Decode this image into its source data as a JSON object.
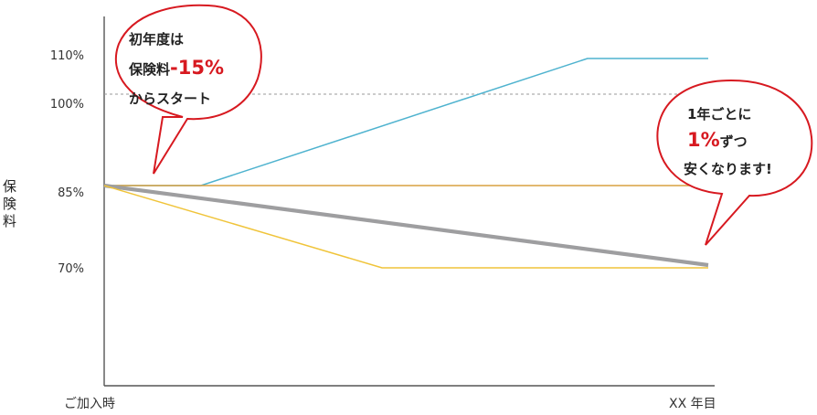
{
  "chart_data": {
    "type": "line",
    "ylabel": "保険料",
    "x_start_label": "ご加入時",
    "x_end_label": "XX 年目",
    "yticks": [
      "110%",
      "100%",
      "85%",
      "70%"
    ],
    "reference_line": {
      "value": 100,
      "style": "dashed"
    },
    "series": [
      {
        "color": "#4fb3cf",
        "x": [
          0,
          0.16,
          0.8,
          1.0
        ],
        "values": [
          85,
          85,
          110,
          110
        ]
      },
      {
        "color": "#d9a040",
        "x": [
          0,
          1.0
        ],
        "values": [
          85,
          85
        ]
      },
      {
        "color": "#9e9ea0",
        "x": [
          0,
          1.0
        ],
        "values": [
          85,
          70.5
        ]
      },
      {
        "color": "#f0c43a",
        "x": [
          0,
          0.46,
          1.0
        ],
        "values": [
          85,
          70,
          70
        ]
      }
    ]
  },
  "callouts": {
    "left": {
      "line1": "初年度は",
      "line2_prefix": "保険料",
      "line2_highlight": "-15%",
      "line3": "からスタート"
    },
    "right": {
      "line1": "1年ごとに",
      "line2_highlight": "1%",
      "line2_suffix": "ずつ",
      "line3": "安くなります!"
    }
  },
  "colors": {
    "axis": "#555555",
    "highlight": "#d71920",
    "bubble_border": "#d71920"
  }
}
